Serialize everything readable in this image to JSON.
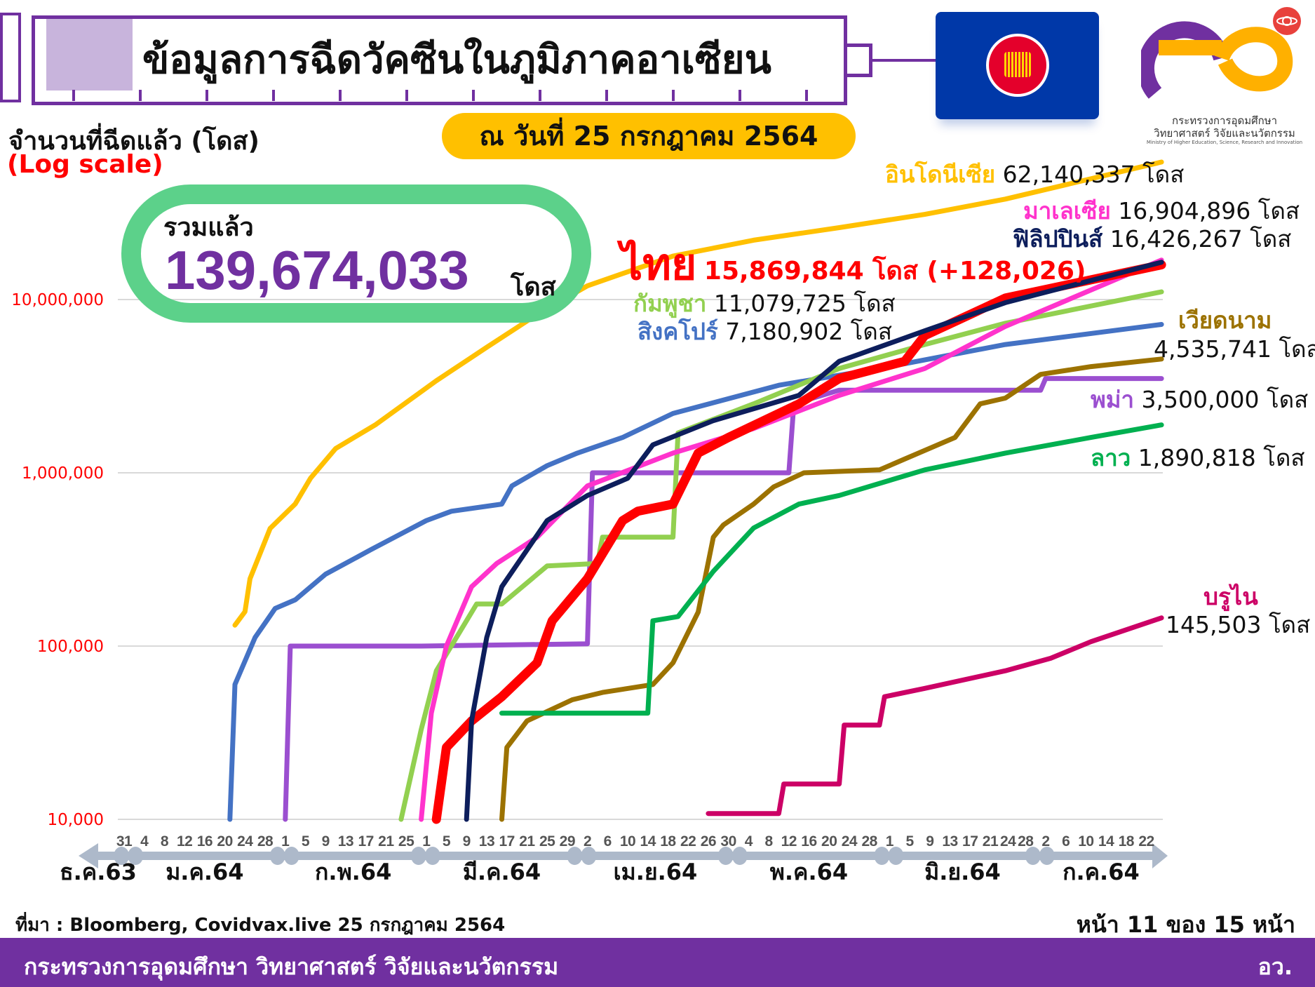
{
  "header": {
    "title": "ข้อมูลการฉีดวัคซีนในภูมิภาคอาเซียน",
    "date_badge": "ณ วันที่ 25 กรกฎาคม 2564",
    "logo_text_line1": "กระทรวงการอุดมศึกษา",
    "logo_text_line2": "วิทยาศาสตร์ วิจัยและนวัตกรรม",
    "logo_text_en": "Ministry of Higher Education, Science, Research and Innovation"
  },
  "y_axis_label": "จำนวนที่ฉีดแล้ว (โดส)",
  "y_scale_label": "(Log scale)",
  "total": {
    "label": "รวมแล้ว",
    "value": "139,674,033",
    "unit": "โดส"
  },
  "labels": {
    "indonesia": {
      "name": "อินโดนีเซีย",
      "value": "62,140,337 โดส"
    },
    "malaysia": {
      "name": "มาเลเซีย",
      "value": "16,904,896 โดส"
    },
    "philippines": {
      "name": "ฟิลิปปินส์",
      "value": "16,426,267 โดส"
    },
    "thailand": {
      "name": "ไทย",
      "value": "15,869,844 โดส (+128,026)"
    },
    "cambodia": {
      "name": "กัมพูชา",
      "value": "11,079,725 โดส"
    },
    "singapore": {
      "name": "สิงคโปร์",
      "value": "7,180,902 โดส"
    },
    "vietnam": {
      "name": "เวียดนาม",
      "value": "4,535,741 โดส"
    },
    "myanmar": {
      "name": "พม่า",
      "value": "3,500,000 โดส"
    },
    "laos": {
      "name": "ลาว",
      "value": "1,890,818 โดส"
    },
    "brunei": {
      "name": "บรูไน",
      "value": "145,503 โดส"
    }
  },
  "footer": {
    "source": "ที่มา : Bloomberg, Covidvax.live 25 กรกฎาคม 2564",
    "page": "หน้า 11 ของ 15 หน้า",
    "ministry": "กระทรวงการอุดมศึกษา วิทยาศาสตร์ วิจัยและนวัตกรรม",
    "abbr": "อว."
  },
  "chart_data": {
    "type": "line",
    "y_scale": "log",
    "ylim": [
      10000,
      100000000
    ],
    "y_ticks": [
      {
        "value": 10000,
        "label": "10,000"
      },
      {
        "value": 100000,
        "label": "100,000"
      },
      {
        "value": 1000000,
        "label": "1,000,000"
      },
      {
        "value": 10000000,
        "label": "10,000,000"
      }
    ],
    "grid": true,
    "tick_color": "#FF0000",
    "x_ticks": [
      {
        "date": "2020-12-31",
        "label": "31"
      },
      {
        "date": "2021-01-04",
        "label": "4"
      },
      {
        "date": "2021-01-08",
        "label": "8"
      },
      {
        "date": "2021-01-12",
        "label": "12"
      },
      {
        "date": "2021-01-16",
        "label": "16"
      },
      {
        "date": "2021-01-20",
        "label": "20"
      },
      {
        "date": "2021-01-24",
        "label": "24"
      },
      {
        "date": "2021-01-28",
        "label": "28"
      },
      {
        "date": "2021-02-01",
        "label": "1"
      },
      {
        "date": "2021-02-05",
        "label": "5"
      },
      {
        "date": "2021-02-09",
        "label": "9"
      },
      {
        "date": "2021-02-13",
        "label": "13"
      },
      {
        "date": "2021-02-17",
        "label": "17"
      },
      {
        "date": "2021-02-21",
        "label": "21"
      },
      {
        "date": "2021-02-25",
        "label": "25"
      },
      {
        "date": "2021-03-01",
        "label": "1"
      },
      {
        "date": "2021-03-05",
        "label": "5"
      },
      {
        "date": "2021-03-09",
        "label": "9"
      },
      {
        "date": "2021-03-13",
        "label": "13"
      },
      {
        "date": "2021-03-17",
        "label": "17"
      },
      {
        "date": "2021-03-21",
        "label": "21"
      },
      {
        "date": "2021-03-25",
        "label": "25"
      },
      {
        "date": "2021-03-29",
        "label": "29"
      },
      {
        "date": "2021-04-02",
        "label": "2"
      },
      {
        "date": "2021-04-06",
        "label": "6"
      },
      {
        "date": "2021-04-10",
        "label": "10"
      },
      {
        "date": "2021-04-14",
        "label": "14"
      },
      {
        "date": "2021-04-18",
        "label": "18"
      },
      {
        "date": "2021-04-22",
        "label": "22"
      },
      {
        "date": "2021-04-26",
        "label": "26"
      },
      {
        "date": "2021-04-30",
        "label": "30"
      },
      {
        "date": "2021-05-04",
        "label": "4"
      },
      {
        "date": "2021-05-08",
        "label": "8"
      },
      {
        "date": "2021-05-12",
        "label": "12"
      },
      {
        "date": "2021-05-16",
        "label": "16"
      },
      {
        "date": "2021-05-20",
        "label": "20"
      },
      {
        "date": "2021-05-24",
        "label": "24"
      },
      {
        "date": "2021-05-28",
        "label": "28"
      },
      {
        "date": "2021-06-01",
        "label": "1"
      },
      {
        "date": "2021-06-05",
        "label": "5"
      },
      {
        "date": "2021-06-09",
        "label": "9"
      },
      {
        "date": "2021-06-13",
        "label": "13"
      },
      {
        "date": "2021-06-17",
        "label": "17"
      },
      {
        "date": "2021-06-21",
        "label": "21"
      },
      {
        "date": "2021-06-24",
        "label": "24"
      },
      {
        "date": "2021-06-28",
        "label": "28"
      },
      {
        "date": "2021-07-02",
        "label": "2"
      },
      {
        "date": "2021-07-06",
        "label": "6"
      },
      {
        "date": "2021-07-10",
        "label": "10"
      },
      {
        "date": "2021-07-14",
        "label": "14"
      },
      {
        "date": "2021-07-18",
        "label": "18"
      },
      {
        "date": "2021-07-22",
        "label": "22"
      }
    ],
    "months": [
      {
        "label": "ธ.ค.63",
        "start": "2020-12-27",
        "end": "2020-12-31"
      },
      {
        "label": "ม.ค.64",
        "start": "2021-01-01",
        "end": "2021-01-31"
      },
      {
        "label": "ก.พ.64",
        "start": "2021-02-01",
        "end": "2021-02-28"
      },
      {
        "label": "มี.ค.64",
        "start": "2021-03-01",
        "end": "2021-03-31"
      },
      {
        "label": "เม.ย.64",
        "start": "2021-04-01",
        "end": "2021-04-30"
      },
      {
        "label": "พ.ค.64",
        "start": "2021-05-01",
        "end": "2021-05-31"
      },
      {
        "label": "มิ.ย.64",
        "start": "2021-06-01",
        "end": "2021-06-30"
      },
      {
        "label": "ก.ค.64",
        "start": "2021-07-01",
        "end": "2021-07-25"
      }
    ],
    "series": [
      {
        "name": "อินโดนีเซีย",
        "color": "#FFC000",
        "points": [
          [
            "2021-01-22",
            132000
          ],
          [
            "2021-01-24",
            158000
          ],
          [
            "2021-01-25",
            245000
          ],
          [
            "2021-01-29",
            478000
          ],
          [
            "2021-02-03",
            662000
          ],
          [
            "2021-02-06",
            930000
          ],
          [
            "2021-02-11",
            1380000
          ],
          [
            "2021-02-19",
            1900000
          ],
          [
            "2021-03-03",
            3400000
          ],
          [
            "2021-03-13",
            5300000
          ],
          [
            "2021-03-23",
            8200000
          ],
          [
            "2021-04-02",
            12000000
          ],
          [
            "2021-04-19",
            17800000
          ],
          [
            "2021-05-05",
            22000000
          ],
          [
            "2021-05-22",
            26000000
          ],
          [
            "2021-06-08",
            31000000
          ],
          [
            "2021-06-24",
            38000000
          ],
          [
            "2021-07-25",
            62140337
          ]
        ]
      },
      {
        "name": "สิงคโปร์",
        "color": "#4472C4",
        "points": [
          [
            "2021-01-21",
            10000
          ],
          [
            "2021-01-22",
            60000
          ],
          [
            "2021-01-26",
            112000
          ],
          [
            "2021-01-30",
            165000
          ],
          [
            "2021-02-03",
            185000
          ],
          [
            "2021-02-09",
            260000
          ],
          [
            "2021-02-18",
            360000
          ],
          [
            "2021-03-01",
            530000
          ],
          [
            "2021-03-06",
            600000
          ],
          [
            "2021-03-16",
            660000
          ],
          [
            "2021-03-18",
            840000
          ],
          [
            "2021-03-25",
            1100000
          ],
          [
            "2021-03-31",
            1300000
          ],
          [
            "2021-04-09",
            1600000
          ],
          [
            "2021-04-19",
            2200000
          ],
          [
            "2021-05-10",
            3200000
          ],
          [
            "2021-05-30",
            4000000
          ],
          [
            "2021-06-24",
            5500000
          ],
          [
            "2021-07-25",
            7180902
          ]
        ]
      },
      {
        "name": "พม่า",
        "color": "#9B4FD0",
        "points": [
          [
            "2021-02-01",
            10000
          ],
          [
            "2021-02-02",
            100000
          ],
          [
            "2021-02-28",
            100000
          ],
          [
            "2021-04-02",
            103000
          ],
          [
            "2021-04-03",
            1000000
          ],
          [
            "2021-05-12",
            1000000
          ],
          [
            "2021-05-13",
            2500000
          ],
          [
            "2021-05-22",
            3000000
          ],
          [
            "2021-07-01",
            3000000
          ],
          [
            "2021-07-02",
            3500000
          ],
          [
            "2021-07-25",
            3500000
          ]
        ]
      },
      {
        "name": "เวียดนาม",
        "color": "#9C7200",
        "points": [
          [
            "2021-03-16",
            10000
          ],
          [
            "2021-03-17",
            26000
          ],
          [
            "2021-03-21",
            37000
          ],
          [
            "2021-03-30",
            49000
          ],
          [
            "2021-04-05",
            54000
          ],
          [
            "2021-04-15",
            60000
          ],
          [
            "2021-04-19",
            80000
          ],
          [
            "2021-04-24",
            157000
          ],
          [
            "2021-04-27",
            425000
          ],
          [
            "2021-04-29",
            500000
          ],
          [
            "2021-05-05",
            660000
          ],
          [
            "2021-05-09",
            830000
          ],
          [
            "2021-05-15",
            1000000
          ],
          [
            "2021-05-30",
            1040000
          ],
          [
            "2021-06-04",
            1200000
          ],
          [
            "2021-06-14",
            1600000
          ],
          [
            "2021-06-19",
            2500000
          ],
          [
            "2021-06-24",
            2700000
          ],
          [
            "2021-07-01",
            3700000
          ],
          [
            "2021-07-11",
            4100000
          ],
          [
            "2021-07-25",
            4535741
          ]
        ]
      },
      {
        "name": "ลาว",
        "color": "#00B050",
        "points": [
          [
            "2021-03-16",
            41000
          ],
          [
            "2021-04-14",
            41000
          ],
          [
            "2021-04-15",
            140000
          ],
          [
            "2021-04-20",
            148000
          ],
          [
            "2021-04-27",
            270000
          ],
          [
            "2021-05-05",
            480000
          ],
          [
            "2021-05-14",
            660000
          ],
          [
            "2021-05-22",
            740000
          ],
          [
            "2021-06-08",
            1040000
          ],
          [
            "2021-06-24",
            1300000
          ],
          [
            "2021-07-11",
            1600000
          ],
          [
            "2021-07-25",
            1890818
          ]
        ]
      },
      {
        "name": "กัมพูชา",
        "color": "#92D050",
        "points": [
          [
            "2021-02-24",
            10000
          ],
          [
            "2021-02-25",
            13500
          ],
          [
            "2021-02-28",
            33000
          ],
          [
            "2021-03-03",
            72000
          ],
          [
            "2021-03-11",
            175000
          ],
          [
            "2021-03-16",
            175000
          ],
          [
            "2021-03-25",
            290000
          ],
          [
            "2021-04-04",
            300000
          ],
          [
            "2021-04-05",
            425000
          ],
          [
            "2021-04-19",
            425000
          ],
          [
            "2021-04-20",
            1700000
          ],
          [
            "2021-05-05",
            2500000
          ],
          [
            "2021-05-22",
            4000000
          ],
          [
            "2021-06-08",
            5500000
          ],
          [
            "2021-06-24",
            7300000
          ],
          [
            "2021-07-25",
            11079725
          ]
        ]
      },
      {
        "name": "บรูไน",
        "color": "#CC0066",
        "points": [
          [
            "2021-04-26",
            10800
          ],
          [
            "2021-05-10",
            10800
          ],
          [
            "2021-05-11",
            16000
          ],
          [
            "2021-05-22",
            16000
          ],
          [
            "2021-05-23",
            35000
          ],
          [
            "2021-05-30",
            35000
          ],
          [
            "2021-05-31",
            51000
          ],
          [
            "2021-06-08",
            57000
          ],
          [
            "2021-06-24",
            72000
          ],
          [
            "2021-07-03",
            85000
          ],
          [
            "2021-07-11",
            106000
          ],
          [
            "2021-07-25",
            145503
          ]
        ]
      },
      {
        "name": "มาเลเซีย",
        "color": "#FF33CC",
        "points": [
          [
            "2021-02-28",
            10000
          ],
          [
            "2021-03-02",
            41000
          ],
          [
            "2021-03-05",
            100000
          ],
          [
            "2021-03-10",
            220000
          ],
          [
            "2021-03-15",
            300000
          ],
          [
            "2021-03-23",
            425000
          ],
          [
            "2021-04-02",
            840000
          ],
          [
            "2021-04-19",
            1300000
          ],
          [
            "2021-05-05",
            1800000
          ],
          [
            "2021-05-22",
            2800000
          ],
          [
            "2021-06-08",
            4000000
          ],
          [
            "2021-06-24",
            7000000
          ],
          [
            "2021-07-25",
            16904896
          ]
        ]
      },
      {
        "name": "ไทย",
        "color": "#FF0000",
        "points": [
          [
            "2021-03-03",
            10000
          ],
          [
            "2021-03-05",
            26000
          ],
          [
            "2021-03-10",
            37000
          ],
          [
            "2021-03-16",
            51000
          ],
          [
            "2021-03-23",
            80000
          ],
          [
            "2021-03-26",
            140000
          ],
          [
            "2021-04-02",
            245000
          ],
          [
            "2021-04-09",
            530000
          ],
          [
            "2021-04-12",
            600000
          ],
          [
            "2021-04-19",
            660000
          ],
          [
            "2021-04-24",
            1300000
          ],
          [
            "2021-04-30",
            1600000
          ],
          [
            "2021-05-14",
            2500000
          ],
          [
            "2021-05-22",
            3500000
          ],
          [
            "2021-06-04",
            4400000
          ],
          [
            "2021-06-08",
            6200000
          ],
          [
            "2021-06-24",
            10200000
          ],
          [
            "2021-07-25",
            15869844
          ]
        ]
      },
      {
        "name": "ฟิลิปปินส์",
        "color": "#0D1E5C",
        "points": [
          [
            "2021-03-09",
            10000
          ],
          [
            "2021-03-10",
            37000
          ],
          [
            "2021-03-13",
            112000
          ],
          [
            "2021-03-16",
            220000
          ],
          [
            "2021-03-25",
            530000
          ],
          [
            "2021-04-02",
            740000
          ],
          [
            "2021-04-10",
            930000
          ],
          [
            "2021-04-15",
            1450000
          ],
          [
            "2021-04-27",
            2000000
          ],
          [
            "2021-05-14",
            2800000
          ],
          [
            "2021-05-22",
            4400000
          ],
          [
            "2021-06-08",
            6600000
          ],
          [
            "2021-06-24",
            9600000
          ],
          [
            "2021-07-25",
            16426267
          ]
        ]
      }
    ]
  },
  "colors": {
    "purple": "#7030A0",
    "yellow": "#FFC000",
    "green_box": "#5CD18A",
    "flag_blue": "#0038A8"
  }
}
